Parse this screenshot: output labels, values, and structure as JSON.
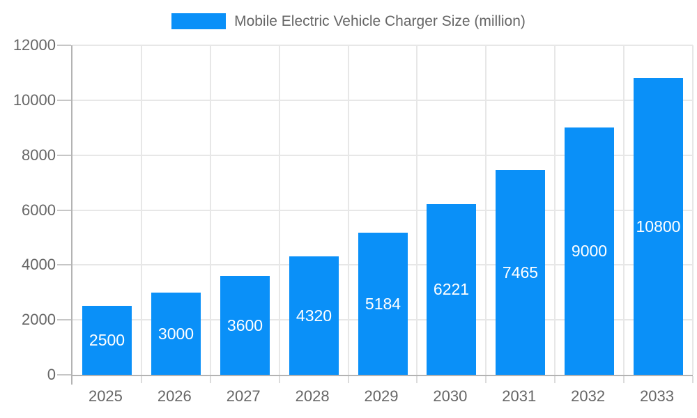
{
  "chart_data": {
    "type": "bar",
    "title": "Mobile Electric Vehicle Charger Size (million)",
    "legend": {
      "position": "top",
      "label": "Mobile Electric Vehicle Charger Size (million)"
    },
    "categories": [
      "2025",
      "2026",
      "2027",
      "2028",
      "2029",
      "2030",
      "2031",
      "2032",
      "2033"
    ],
    "values": [
      2500,
      3000,
      3600,
      4320,
      5184,
      6221,
      7465,
      9000,
      10800
    ],
    "xlabel": "",
    "ylabel": "",
    "ylim": [
      0,
      12000
    ],
    "yticks": [
      0,
      2000,
      4000,
      6000,
      8000,
      10000,
      12000
    ],
    "grid": true,
    "value_labels_shown": true,
    "colors": {
      "bar": "#0a90f8",
      "value_label": "#ffffff",
      "axis_text": "#666666",
      "grid": "#e7e7e7",
      "axis_line": "#b3b3b3",
      "background": "#ffffff"
    }
  }
}
